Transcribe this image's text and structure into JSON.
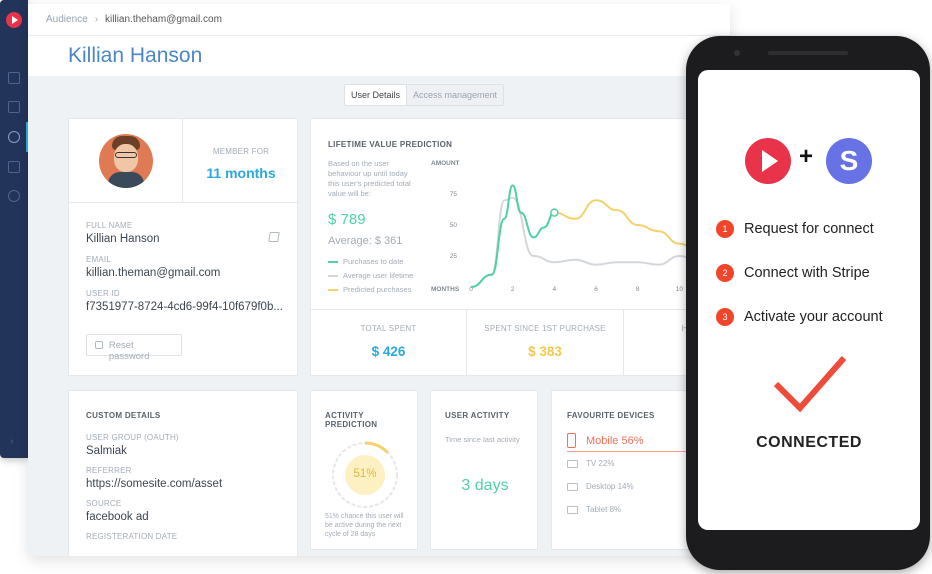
{
  "breadcrumb": {
    "parent": "Audience",
    "separator": "›",
    "current": "killian.theham@gmail.com"
  },
  "page_title": "Killian Hanson",
  "tabs": [
    {
      "label": "User Details",
      "active": true
    },
    {
      "label": "Access management",
      "active": false
    }
  ],
  "profile": {
    "member_for_label": "MEMBER FOR",
    "member_for_value": "11 months",
    "full_name_label": "FULL NAME",
    "full_name": "Killian Hanson",
    "email_label": "EMAIL",
    "email": "killian.theman@gmail.com",
    "user_id_label": "USER ID",
    "user_id": "f7351977-8724-4cd6-99f4-10f679f0b...",
    "reset_password": "Reset password"
  },
  "ltv": {
    "title": "LIFETIME VALUE PREDICTION",
    "description": "Based on the user behaviour up until today this user's predicted total value will be:",
    "value": "$ 789",
    "average": "Average: $ 361",
    "legend": [
      "Purchases to date",
      "Average user lifetime",
      "Predicted purchases"
    ],
    "colors": {
      "purchases": "#4fd1a5",
      "average": "#d3d7dc",
      "predicted": "#f4d26b"
    }
  },
  "chart_data": {
    "type": "line",
    "xlabel": "MONTHS",
    "ylabel": "AMOUNT",
    "x_ticks": [
      0,
      2,
      4,
      6,
      8,
      10
    ],
    "y_ticks": [
      25,
      50,
      75
    ],
    "ylim": [
      0,
      100
    ],
    "xlim": [
      0,
      12
    ],
    "series": [
      {
        "name": "Purchases to date",
        "x": [
          0,
          1,
          1.6,
          2,
          2.4,
          3,
          3.5,
          4
        ],
        "y": [
          0,
          10,
          55,
          82,
          60,
          40,
          48,
          60
        ]
      },
      {
        "name": "Average user lifetime",
        "x": [
          0,
          1,
          1.6,
          2,
          3,
          4,
          5,
          6,
          7,
          8,
          9,
          10,
          11,
          12
        ],
        "y": [
          0,
          10,
          70,
          72,
          25,
          20,
          22,
          18,
          20,
          20,
          18,
          25,
          20,
          20
        ]
      },
      {
        "name": "Predicted purchases",
        "x": [
          4,
          5,
          6,
          7,
          8,
          9,
          10,
          11,
          12
        ],
        "y": [
          60,
          55,
          70,
          62,
          50,
          45,
          35,
          28,
          30
        ]
      }
    ],
    "grid": false
  },
  "stats": [
    {
      "label": "TOTAL SPENT",
      "value": "$ 426",
      "color": "#2aa8e0"
    },
    {
      "label": "SPENT SINCE 1ST PURCHASE",
      "value": "$ 383",
      "color": "#f2c94c"
    },
    {
      "label": "HEAL",
      "value": "",
      "color": "#4fd1a5"
    }
  ],
  "custom": {
    "title": "CUSTOM DETAILS",
    "fields": [
      {
        "label": "USER GROUP (OAUTH)",
        "value": "Salmiak"
      },
      {
        "label": "REFERRER",
        "value": "https://somesite.com/asset"
      },
      {
        "label": "SOURCE",
        "value": "facebook ad"
      },
      {
        "label": "REGISTERATION DATE",
        "value": ""
      }
    ]
  },
  "activity_prediction": {
    "title": "ACTIVITY PREDICTION",
    "percent": 51,
    "percent_label": "51%",
    "text": "51% chance this user will be active during the next cycle of 28 days"
  },
  "user_activity": {
    "title": "USER ACTIVITY",
    "subtitle": "Time since last activity",
    "value": "3 days"
  },
  "devices": {
    "title": "FAVOURITE DEVICES",
    "primary": "Mobile 56%",
    "items": [
      {
        "label": "TV 22%",
        "share": 22
      },
      {
        "label": "Desktop 14%",
        "share": 14
      },
      {
        "label": "Tablet 8%",
        "share": 8
      }
    ]
  },
  "phone": {
    "logo_letter": "S",
    "plus": "+",
    "steps": [
      {
        "num": "1",
        "text": "Request for connect"
      },
      {
        "num": "2",
        "text": "Connect with Stripe"
      },
      {
        "num": "3",
        "text": "Activate your account"
      }
    ],
    "status": "CONNECTED"
  }
}
